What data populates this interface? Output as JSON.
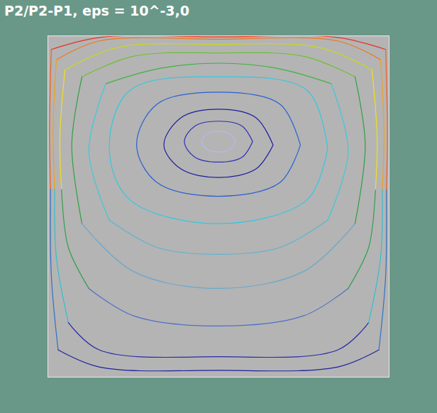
{
  "chart_data": {
    "type": "streamlines",
    "title": "P2/P2-P1, eps = 10^-3,0",
    "xlim": [
      0,
      1
    ],
    "ylim": [
      0,
      1
    ],
    "tick_labels": false,
    "series": [
      {
        "color": "#b8b8f0",
        "x": [
          0.55,
          0.535,
          0.5,
          0.465,
          0.45,
          0.465,
          0.5,
          0.535,
          0.55
        ],
        "y": [
          0.69,
          0.712,
          0.72,
          0.712,
          0.69,
          0.668,
          0.66,
          0.668,
          0.69
        ]
      },
      {
        "color": "#3030b8",
        "x": [
          0.6,
          0.57,
          0.5,
          0.43,
          0.4,
          0.43,
          0.5,
          0.57,
          0.6
        ],
        "y": [
          0.69,
          0.735,
          0.75,
          0.735,
          0.69,
          0.645,
          0.63,
          0.645,
          0.69
        ]
      },
      {
        "color": "#1c1ca0",
        "x": [
          0.66,
          0.61,
          0.5,
          0.39,
          0.34,
          0.39,
          0.5,
          0.61,
          0.66
        ],
        "y": [
          0.68,
          0.76,
          0.785,
          0.76,
          0.68,
          0.61,
          0.585,
          0.61,
          0.68
        ]
      },
      {
        "color": "#2860d0",
        "x": [
          0.74,
          0.68,
          0.5,
          0.32,
          0.26,
          0.32,
          0.5,
          0.68,
          0.74
        ],
        "y": [
          0.68,
          0.8,
          0.835,
          0.8,
          0.68,
          0.57,
          0.53,
          0.57,
          0.68
        ]
      },
      {
        "color": "#30c8e0",
        "x": [
          0.82,
          0.76,
          0.5,
          0.24,
          0.18,
          0.24,
          0.5,
          0.76,
          0.82
        ],
        "y": [
          0.67,
          0.84,
          0.88,
          0.84,
          0.67,
          0.52,
          0.45,
          0.52,
          0.67
        ]
      },
      {
        "color": "#3cb43c",
        "x": [
          0.83,
          0.67,
          0.5,
          0.33,
          0.17
        ],
        "y": [
          0.86,
          0.905,
          0.92,
          0.905,
          0.86
        ]
      },
      {
        "color": "#40c8d8",
        "x": [
          0.17,
          0.12,
          0.18
        ],
        "y": [
          0.86,
          0.66,
          0.46
        ]
      },
      {
        "color": "#5ab4d0",
        "x": [
          0.18,
          0.32,
          0.5,
          0.68,
          0.82
        ],
        "y": [
          0.46,
          0.38,
          0.36,
          0.38,
          0.46
        ]
      },
      {
        "color": "#40c8d8",
        "x": [
          0.82,
          0.88,
          0.83
        ],
        "y": [
          0.46,
          0.66,
          0.86
        ]
      },
      {
        "color": "#6cc030",
        "x": [
          0.9,
          0.75,
          0.5,
          0.25,
          0.1
        ],
        "y": [
          0.88,
          0.94,
          0.95,
          0.94,
          0.88
        ]
      },
      {
        "color": "#30a040",
        "x": [
          0.1,
          0.07,
          0.1
        ],
        "y": [
          0.88,
          0.68,
          0.45
        ]
      },
      {
        "color": "#6aa8c8",
        "x": [
          0.1,
          0.25,
          0.5,
          0.75,
          0.9
        ],
        "y": [
          0.45,
          0.31,
          0.26,
          0.31,
          0.45
        ]
      },
      {
        "color": "#30a040",
        "x": [
          0.9,
          0.93,
          0.9
        ],
        "y": [
          0.45,
          0.68,
          0.88
        ]
      },
      {
        "color": "#c8d820",
        "x": [
          0.95,
          0.8,
          0.5,
          0.2,
          0.05
        ],
        "y": [
          0.9,
          0.965,
          0.975,
          0.965,
          0.9
        ]
      },
      {
        "color": "#f0e020",
        "x": [
          0.05,
          0.035,
          0.04
        ],
        "y": [
          0.9,
          0.7,
          0.55
        ]
      },
      {
        "color": "#30a050",
        "x": [
          0.04,
          0.06,
          0.12
        ],
        "y": [
          0.55,
          0.38,
          0.26
        ]
      },
      {
        "color": "#5070c8",
        "x": [
          0.12,
          0.25,
          0.5,
          0.75,
          0.88
        ],
        "y": [
          0.26,
          0.18,
          0.15,
          0.18,
          0.26
        ]
      },
      {
        "color": "#30a050",
        "x": [
          0.88,
          0.94,
          0.96
        ],
        "y": [
          0.26,
          0.38,
          0.55
        ]
      },
      {
        "color": "#f0e020",
        "x": [
          0.96,
          0.965,
          0.95
        ],
        "y": [
          0.55,
          0.7,
          0.9
        ]
      },
      {
        "color": "#f07818",
        "x": [
          0.975,
          0.85,
          0.5,
          0.15,
          0.025
        ],
        "y": [
          0.93,
          0.985,
          0.99,
          0.985,
          0.93
        ]
      },
      {
        "color": "#f0a020",
        "x": [
          0.025,
          0.015,
          0.02
        ],
        "y": [
          0.93,
          0.72,
          0.55
        ]
      },
      {
        "color": "#30c0d0",
        "x": [
          0.02,
          0.025,
          0.06
        ],
        "y": [
          0.55,
          0.35,
          0.16
        ]
      },
      {
        "color": "#2828a8",
        "x": [
          0.06,
          0.15,
          0.5,
          0.85,
          0.94
        ],
        "y": [
          0.16,
          0.08,
          0.06,
          0.08,
          0.16
        ]
      },
      {
        "color": "#30c0d0",
        "x": [
          0.94,
          0.975,
          0.98
        ],
        "y": [
          0.16,
          0.35,
          0.55
        ]
      },
      {
        "color": "#f0a020",
        "x": [
          0.98,
          0.985,
          0.975
        ],
        "y": [
          0.55,
          0.72,
          0.93
        ]
      },
      {
        "color": "#e83020",
        "x": [
          0.99,
          0.85,
          0.5,
          0.15,
          0.01
        ],
        "y": [
          0.96,
          0.995,
          0.997,
          0.995,
          0.96
        ]
      },
      {
        "color": "#f06020",
        "x": [
          0.01,
          0.005,
          0.008
        ],
        "y": [
          0.96,
          0.72,
          0.55
        ]
      },
      {
        "color": "#3070c0",
        "x": [
          0.008,
          0.01,
          0.03
        ],
        "y": [
          0.55,
          0.3,
          0.08
        ]
      },
      {
        "color": "#2020a0",
        "x": [
          0.03,
          0.15,
          0.5,
          0.85,
          0.97
        ],
        "y": [
          0.08,
          0.03,
          0.02,
          0.03,
          0.08
        ]
      },
      {
        "color": "#3070c0",
        "x": [
          0.97,
          0.99,
          0.992
        ],
        "y": [
          0.08,
          0.3,
          0.55
        ]
      },
      {
        "color": "#f06020",
        "x": [
          0.992,
          0.995,
          0.99
        ],
        "y": [
          0.55,
          0.72,
          0.96
        ]
      }
    ]
  }
}
